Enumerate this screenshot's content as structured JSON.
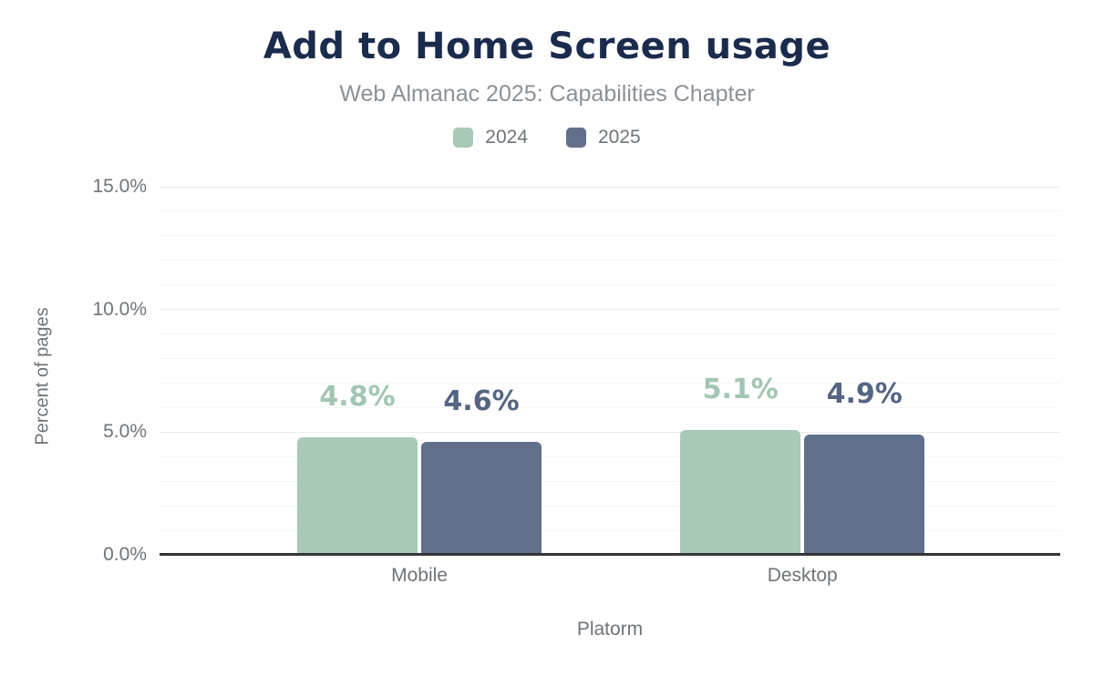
{
  "header": {
    "title": "Add to Home Screen usage",
    "subtitle": "Web Almanac 2025: Capabilities Chapter"
  },
  "chart_data": {
    "type": "bar",
    "title": "Add to Home Screen usage",
    "subtitle": "Web Almanac 2025: Capabilities Chapter",
    "categories": [
      "Mobile",
      "Desktop"
    ],
    "series": [
      {
        "name": "2024",
        "color": "#a7c9b6",
        "label_color": "#a2c6b2",
        "values": [
          4.8,
          5.1
        ],
        "value_labels": [
          "4.8%",
          "5.1%"
        ]
      },
      {
        "name": "2025",
        "color": "#60708a",
        "label_color": "#546583",
        "values": [
          4.6,
          4.9
        ],
        "value_labels": [
          "4.6%",
          "4.9%"
        ]
      }
    ],
    "xlabel": "Platorm",
    "ylabel": "Percent of pages",
    "ylim": [
      0,
      15
    ],
    "yticks": [
      0,
      5,
      10,
      15
    ],
    "yticklabels": [
      "0.0%",
      "5.0%",
      "10.0%",
      "15.0%"
    ],
    "minor_grid_step": 1,
    "grid": true,
    "legend_position": "top",
    "colors": {
      "title": "#1b2b4d",
      "subtitle": "#8c9196",
      "axis_text": "#6f7478",
      "axis_line": "#333639",
      "grid_major": "#ebebeb",
      "grid_minor": "#f6f6f6"
    }
  }
}
